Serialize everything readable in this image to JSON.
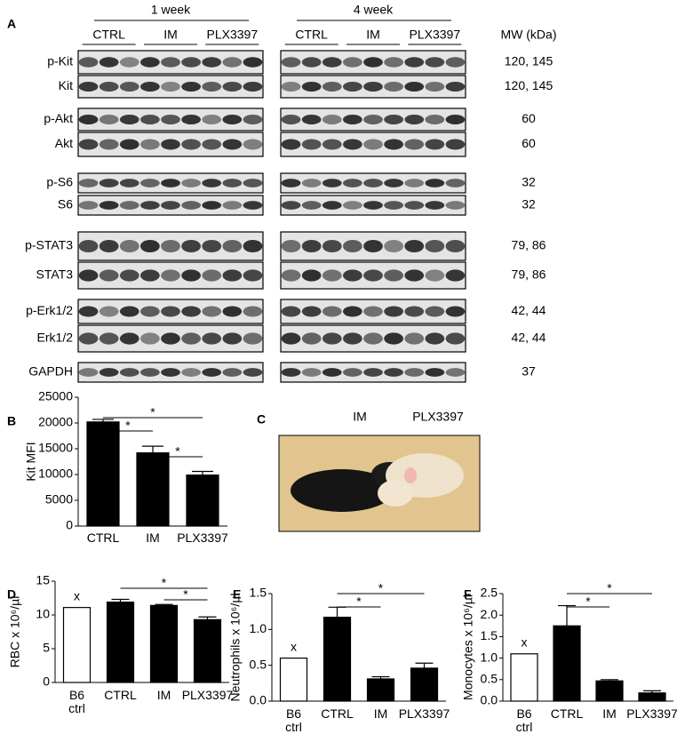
{
  "blot": {
    "panel_label": "A",
    "mw_header": "MW (kDa)",
    "groups": [
      {
        "label": "1 week",
        "conditions": [
          "CTRL",
          "IM",
          "PLX3397"
        ]
      },
      {
        "label": "4 week",
        "conditions": [
          "CTRL",
          "IM",
          "PLX3397"
        ]
      }
    ],
    "rows": [
      {
        "name": "p-Kit",
        "mw": "120, 145"
      },
      {
        "name": "Kit",
        "mw": "120, 145"
      },
      {
        "name": "p-Akt",
        "mw": "60"
      },
      {
        "name": "Akt",
        "mw": "60"
      },
      {
        "name": "p-S6",
        "mw": "32"
      },
      {
        "name": "S6",
        "mw": "32"
      },
      {
        "name": "p-STAT3",
        "mw": "79, 86"
      },
      {
        "name": "STAT3",
        "mw": "79, 86"
      },
      {
        "name": "p-Erk1/2",
        "mw": "42, 44"
      },
      {
        "name": "Erk1/2",
        "mw": "42, 44"
      },
      {
        "name": "GAPDH",
        "mw": "37"
      }
    ]
  },
  "photo": {
    "panel_label": "C",
    "labels": [
      "IM",
      "PLX3397"
    ]
  },
  "chart_data": [
    {
      "type": "bar",
      "panel_label": "B",
      "y_label": "Kit MFI",
      "categories": [
        "CTRL",
        "IM",
        "PLX3397"
      ],
      "values": [
        20200,
        14200,
        9900
      ],
      "errors": [
        500,
        1300,
        700
      ],
      "colors": [
        "#000000",
        "#000000",
        "#000000"
      ],
      "ylim": [
        0,
        25000
      ],
      "yticks": [
        0,
        5000,
        10000,
        15000,
        20000,
        25000
      ],
      "significance": [
        {
          "label": "*",
          "pair": [
            "CTRL",
            "PLX3397"
          ]
        },
        {
          "label": "*",
          "pair": [
            "CTRL",
            "IM"
          ]
        },
        {
          "label": "*",
          "pair": [
            "IM",
            "PLX3397"
          ]
        }
      ]
    },
    {
      "type": "bar",
      "panel_label": "D",
      "y_label": "RBC x 10⁶/µl",
      "categories": [
        "B6\nctrl",
        "CTRL",
        "IM",
        "PLX3397"
      ],
      "values": [
        11.1,
        11.9,
        11.4,
        9.3
      ],
      "errors": [
        null,
        0.4,
        0.15,
        0.4
      ],
      "colors": [
        "#ffffff",
        "#000000",
        "#000000",
        "#000000"
      ],
      "ylim": [
        0,
        15
      ],
      "yticks": [
        0,
        5,
        10,
        15
      ],
      "annotations": [
        {
          "text": "x",
          "category": "B6\nctrl"
        }
      ],
      "significance": [
        {
          "label": "*",
          "pair": [
            "CTRL",
            "PLX3397"
          ]
        },
        {
          "label": "*",
          "pair": [
            "IM",
            "PLX3397"
          ]
        }
      ]
    },
    {
      "type": "bar",
      "panel_label": "E",
      "y_label": "Neutrophils x 10⁶/µl",
      "categories": [
        "B6\nctrl",
        "CTRL",
        "IM",
        "PLX3397"
      ],
      "values": [
        0.6,
        1.17,
        0.31,
        0.46
      ],
      "errors": [
        null,
        0.14,
        0.03,
        0.07
      ],
      "colors": [
        "#ffffff",
        "#000000",
        "#000000",
        "#000000"
      ],
      "ylim": [
        0,
        1.5
      ],
      "yticks": [
        {
          "value": 0,
          "label": "0.0"
        },
        0.5,
        {
          "value": 1,
          "label": "1.0"
        },
        1.5
      ],
      "annotations": [
        {
          "text": "x",
          "category": "B6\nctrl"
        }
      ],
      "significance": [
        {
          "label": "*",
          "pair": [
            "CTRL",
            "PLX3397"
          ]
        },
        {
          "label": "*",
          "pair": [
            "CTRL",
            "IM"
          ]
        }
      ]
    },
    {
      "type": "bar",
      "panel_label": "F",
      "y_label": "Monocytes x 10⁶/µl",
      "categories": [
        "B6\nctrl",
        "CTRL",
        "IM",
        "PLX3397"
      ],
      "values": [
        1.1,
        1.75,
        0.47,
        0.19
      ],
      "errors": [
        null,
        0.47,
        0.03,
        0.05
      ],
      "colors": [
        "#ffffff",
        "#000000",
        "#000000",
        "#000000"
      ],
      "ylim": [
        0,
        2.5
      ],
      "yticks": [
        {
          "value": 0,
          "label": "0.0"
        },
        0.5,
        {
          "value": 1,
          "label": "1.0"
        },
        1.5,
        {
          "value": 2,
          "label": "2.0"
        },
        2.5
      ],
      "annotations": [
        {
          "text": "x",
          "category": "B6\nctrl"
        }
      ],
      "significance": [
        {
          "label": "*",
          "pair": [
            "CTRL",
            "PLX3397"
          ]
        },
        {
          "label": "*",
          "pair": [
            "CTRL",
            "IM"
          ]
        }
      ]
    }
  ]
}
